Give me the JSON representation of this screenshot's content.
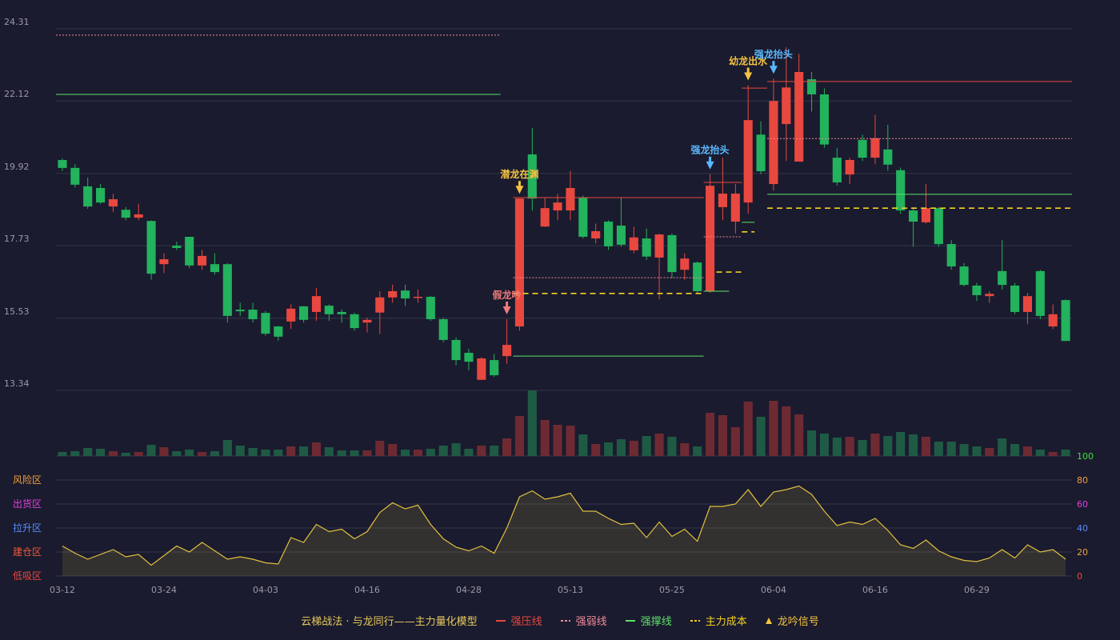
{
  "chart_data": {
    "type": "candlestick",
    "categories": [
      "03-12",
      null,
      null,
      null,
      null,
      null,
      null,
      null,
      "03-24",
      null,
      null,
      null,
      null,
      null,
      null,
      null,
      "04-03",
      null,
      null,
      null,
      null,
      null,
      null,
      null,
      "04-16",
      null,
      null,
      null,
      null,
      null,
      null,
      null,
      "04-28",
      null,
      null,
      null,
      null,
      null,
      null,
      null,
      "05-13",
      null,
      null,
      null,
      null,
      null,
      null,
      null,
      "05-25",
      null,
      null,
      null,
      null,
      null,
      null,
      null,
      "06-04",
      null,
      null,
      null,
      null,
      null,
      null,
      null,
      "06-16",
      null,
      null,
      null,
      null,
      null,
      null,
      null,
      "06-29",
      null,
      null,
      null,
      null,
      null,
      null,
      null
    ],
    "open": [
      20.33,
      20.09,
      19.53,
      19.48,
      18.92,
      18.82,
      18.58,
      18.48,
      17.17,
      17.73,
      18.0,
      17.13,
      17.17,
      17.17,
      15.79,
      15.79,
      15.69,
      15.28,
      15.43,
      15.89,
      15.72,
      15.91,
      15.72,
      15.65,
      15.4,
      15.7,
      16.16,
      16.37,
      16.16,
      16.18,
      15.5,
      14.87,
      14.48,
      13.66,
      14.26,
      14.38,
      15.28,
      20.5,
      18.31,
      18.8,
      18.8,
      19.19,
      17.95,
      18.46,
      18.34,
      17.59,
      17.95,
      17.37,
      18.05,
      17.0,
      17.22,
      16.35,
      18.9,
      18.46,
      19.04,
      21.1,
      19.6,
      21.42,
      20.28,
      22.78,
      22.32,
      20.4,
      19.89,
      20.94,
      20.4,
      20.65,
      20.02,
      18.8,
      18.44,
      18.87,
      17.78,
      17.1,
      16.52,
      16.2,
      16.96,
      16.52,
      15.72,
      16.96,
      15.28,
      16.08
    ],
    "high": [
      20.38,
      20.2,
      19.8,
      19.6,
      19.3,
      18.9,
      19.0,
      18.5,
      17.5,
      17.85,
      18.0,
      17.6,
      17.5,
      17.2,
      16.0,
      16.0,
      15.75,
      15.3,
      15.95,
      15.9,
      16.45,
      15.95,
      15.8,
      15.7,
      15.55,
      16.35,
      16.55,
      16.55,
      16.4,
      16.2,
      15.55,
      14.95,
      14.6,
      14.35,
      14.45,
      15.5,
      19.16,
      21.3,
      19.2,
      19.3,
      20.0,
      19.25,
      18.4,
      18.5,
      19.2,
      18.3,
      18.25,
      18.1,
      18.1,
      17.5,
      17.25,
      19.9,
      20.4,
      19.6,
      22.6,
      21.5,
      22.8,
      23.75,
      23.55,
      23.0,
      22.5,
      20.7,
      20.4,
      21.1,
      21.7,
      21.4,
      20.1,
      18.9,
      19.6,
      18.9,
      17.9,
      17.2,
      16.6,
      16.35,
      17.9,
      16.6,
      16.3,
      17.0,
      15.95,
      16.1
    ],
    "low": [
      20.0,
      19.5,
      18.85,
      19.0,
      18.75,
      18.5,
      18.5,
      16.7,
      16.9,
      17.6,
      17.05,
      17.0,
      16.85,
      15.4,
      15.6,
      15.4,
      15.0,
      14.85,
      15.2,
      15.4,
      15.45,
      15.45,
      15.4,
      15.15,
      15.1,
      15.05,
      16.0,
      15.9,
      16.0,
      15.45,
      14.8,
      14.1,
      13.95,
      13.66,
      13.75,
      14.15,
      15.15,
      18.8,
      18.3,
      18.5,
      18.5,
      17.95,
      17.8,
      17.6,
      17.7,
      17.5,
      17.3,
      16.1,
      16.75,
      16.7,
      16.3,
      16.3,
      18.5,
      18.1,
      18.7,
      19.9,
      19.4,
      20.3,
      20.28,
      21.8,
      20.7,
      19.55,
      19.6,
      20.3,
      20.2,
      20.0,
      18.7,
      17.7,
      18.4,
      17.7,
      17.0,
      16.5,
      16.05,
      16.0,
      16.4,
      15.65,
      15.35,
      15.5,
      15.2,
      14.84
    ],
    "close": [
      20.09,
      19.58,
      18.92,
      19.04,
      19.14,
      18.58,
      18.68,
      16.88,
      17.32,
      17.66,
      17.13,
      17.42,
      16.93,
      15.6,
      15.74,
      15.5,
      15.06,
      14.97,
      15.82,
      15.48,
      16.2,
      15.65,
      15.65,
      15.23,
      15.48,
      16.16,
      16.35,
      16.13,
      16.18,
      15.5,
      14.87,
      14.26,
      14.21,
      14.31,
      13.8,
      14.72,
      19.16,
      19.16,
      18.87,
      19.04,
      19.48,
      18.0,
      18.17,
      17.71,
      17.76,
      17.98,
      17.4,
      18.07,
      16.93,
      17.34,
      16.35,
      19.55,
      19.31,
      19.31,
      21.54,
      19.99,
      22.12,
      22.53,
      23.0,
      22.32,
      20.8,
      19.65,
      20.33,
      20.4,
      20.99,
      20.19,
      18.8,
      18.46,
      18.87,
      17.78,
      17.1,
      16.54,
      16.23,
      16.27,
      16.54,
      15.72,
      16.2,
      15.6,
      15.65,
      14.84
    ],
    "up_color": "#e8483f",
    "down_color": "#23b25d",
    "ylim": [
      13.34,
      24.31
    ],
    "yticks": [
      13.34,
      15.53,
      17.73,
      19.92,
      22.12,
      24.31
    ],
    "volume": [
      5,
      6,
      10,
      9,
      6,
      4,
      5,
      14,
      11,
      6,
      8,
      5,
      6,
      20,
      13,
      10,
      8,
      8,
      12,
      12,
      17,
      11,
      7,
      7,
      7,
      19,
      15,
      8,
      8,
      9,
      13,
      16,
      9,
      13,
      13,
      22,
      50,
      82,
      45,
      39,
      38,
      27,
      15,
      17,
      21,
      19,
      25,
      28,
      24,
      16,
      12,
      54,
      51,
      36,
      68,
      49,
      69,
      62,
      52,
      32,
      28,
      23,
      24,
      20,
      28,
      25,
      30,
      27,
      24,
      18,
      18,
      15,
      12,
      10,
      22,
      15,
      12,
      8,
      5,
      8
    ],
    "levels": [
      {
        "name": "强压线",
        "color": "#e8483f",
        "style": "solid",
        "segments": [
          {
            "from": 36,
            "to": 50,
            "value": 19.19
          },
          {
            "from": 51,
            "to": 53,
            "value": 19.65
          },
          {
            "from": 54,
            "to": 55,
            "value": 22.51
          },
          {
            "from": 56,
            "to": 79,
            "value": 22.71
          }
        ]
      },
      {
        "name": "强弱线",
        "color": "#f08a9a",
        "style": "dotted",
        "segments": [
          {
            "from": 0,
            "to": 34,
            "value": 24.12
          },
          {
            "from": 36,
            "to": 50,
            "value": 16.76
          },
          {
            "from": 51,
            "to": 53,
            "value": 18.0
          },
          {
            "from": 56,
            "to": 79,
            "value": 20.98
          }
        ]
      },
      {
        "name": "强撑线",
        "color": "#5ee06a",
        "style": "solid",
        "segments": [
          {
            "from": 0,
            "to": 34,
            "value": 22.32
          },
          {
            "from": 36,
            "to": 50,
            "value": 14.38
          },
          {
            "from": 51,
            "to": 52,
            "value": 16.35
          },
          {
            "from": 54,
            "to": 54,
            "value": 18.44
          },
          {
            "from": 56,
            "to": 79,
            "value": 19.29
          }
        ]
      },
      {
        "name": "主力成本",
        "color": "#f5d020",
        "style": "dashed",
        "segments": [
          {
            "from": 36,
            "to": 50,
            "value": 16.28
          },
          {
            "from": 52,
            "to": 53,
            "value": 16.93
          },
          {
            "from": 54,
            "to": 54,
            "value": 18.15
          },
          {
            "from": 56,
            "to": 79,
            "value": 18.87
          }
        ]
      }
    ],
    "signals": [
      {
        "index": 35,
        "label": "假龙吟",
        "color": "#f07a7a"
      },
      {
        "index": 36,
        "label": "潜龙在渊",
        "color": "#f5c242"
      },
      {
        "index": 51,
        "label": "强龙抬头",
        "color": "#5ab8ff"
      },
      {
        "index": 54,
        "label": "幼龙出水",
        "color": "#f5c242"
      },
      {
        "index": 56,
        "label": "强龙抬头",
        "color": "#5ab8ff"
      }
    ],
    "signal_legend": "龙吟信号",
    "signal_legend_color": "#f5c242",
    "legend_title": "云梯战法 · 与龙同行——主力量化模型",
    "indicator": {
      "values": [
        25,
        19,
        14,
        18,
        22,
        16,
        18,
        9,
        17,
        25,
        20,
        28,
        21,
        14,
        16,
        14,
        11,
        10,
        32,
        28,
        43,
        37,
        39,
        31,
        37,
        53,
        61,
        56,
        59,
        43,
        31,
        24,
        21,
        25,
        19,
        40,
        66,
        71,
        64,
        66,
        69,
        54,
        54,
        48,
        43,
        44,
        32,
        45,
        33,
        39,
        29,
        58,
        58,
        60,
        72,
        58,
        70,
        72,
        75,
        68,
        54,
        42,
        45,
        43,
        48,
        38,
        26,
        23,
        30,
        21,
        16,
        13,
        12,
        15,
        22,
        15,
        26,
        20,
        22,
        14
      ],
      "color": "#e0c040",
      "ylim": [
        0,
        100
      ],
      "yticks": [
        0,
        20,
        40,
        60,
        80,
        100
      ],
      "ytick_colors": [
        "#f0453a",
        "#f0a040",
        "#5a8cff",
        "#e040e0",
        "#f0a040",
        "#40e040"
      ],
      "zones": [
        {
          "value": 80,
          "label": "风险区",
          "color": "#f0a040"
        },
        {
          "value": 60,
          "label": "出货区",
          "color": "#e040e0"
        },
        {
          "value": 40,
          "label": "拉升区",
          "color": "#5a8cff"
        },
        {
          "value": 20,
          "label": "建仓区",
          "color": "#f05a3a"
        },
        {
          "value": 0,
          "label": "低吸区",
          "color": "#f0453a"
        }
      ]
    }
  }
}
